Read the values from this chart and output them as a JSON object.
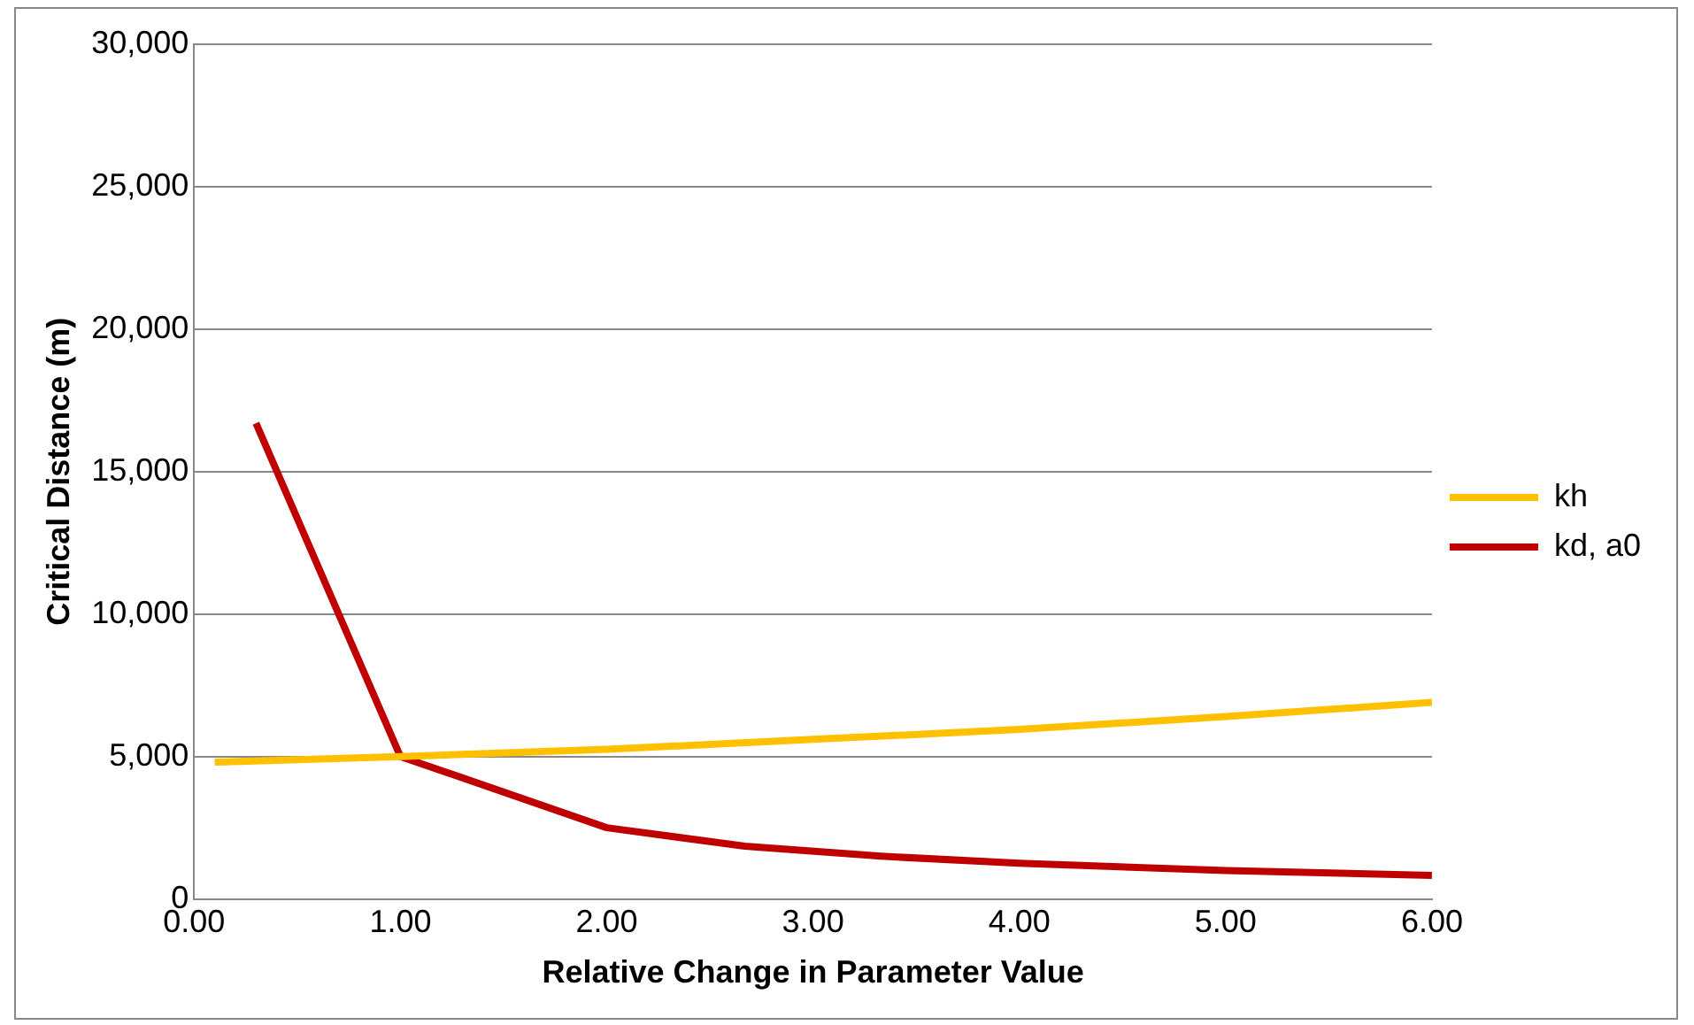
{
  "chart_data": {
    "type": "line",
    "xlabel": "Relative Change in Parameter Value",
    "ylabel": "Critical Distance (m)",
    "xlim": [
      0,
      6
    ],
    "xticks": [
      {
        "value": 0,
        "label": "0.00"
      },
      {
        "value": 1,
        "label": "1.00"
      },
      {
        "value": 2,
        "label": "2.00"
      },
      {
        "value": 3,
        "label": "3.00"
      },
      {
        "value": 4,
        "label": "4.00"
      },
      {
        "value": 5,
        "label": "5.00"
      },
      {
        "value": 6,
        "label": "6.00"
      }
    ],
    "ylim": [
      0,
      30000
    ],
    "yticks": [
      0,
      {
        "value": 5000,
        "label": "5,000"
      },
      {
        "value": 10000,
        "label": "10,000"
      },
      {
        "value": 15000,
        "label": "15,000"
      },
      {
        "value": 20000,
        "label": "20,000"
      },
      {
        "value": 25000,
        "label": "25,000"
      },
      {
        "value": 30000,
        "label": "30,000"
      }
    ],
    "grid": "y",
    "legend": "right",
    "marker": "none",
    "series": [
      {
        "name": "kh",
        "color": "#ffc000",
        "x": [
          0.1,
          1,
          2,
          3,
          4,
          5,
          6
        ],
        "values": [
          4800,
          5000,
          5250,
          5600,
          5950,
          6400,
          6900
        ]
      },
      {
        "name": "kd, a0",
        "color": "#c00000",
        "x": [
          0.3,
          1,
          2,
          2.67,
          3.33,
          4,
          5,
          6
        ],
        "values": [
          16700,
          5000,
          2500,
          1850,
          1500,
          1250,
          1000,
          830
        ]
      }
    ]
  }
}
